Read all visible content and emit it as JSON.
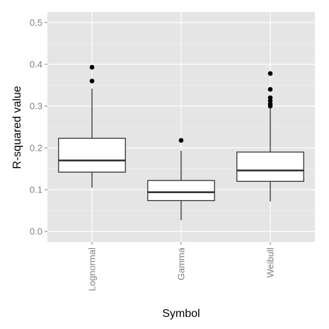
{
  "chart_data": {
    "type": "box",
    "xlabel": "Symbol",
    "ylabel": "R-squared value",
    "ylim": [
      -0.025,
      0.525
    ],
    "yticks": [
      "0.0",
      "0.1",
      "0.2",
      "0.3",
      "0.4",
      "0.5"
    ],
    "ytick_values": [
      0.0,
      0.1,
      0.2,
      0.3,
      0.4,
      0.5
    ],
    "categories": [
      "Lognormal",
      "Gamma",
      "Weibull"
    ],
    "grid": true,
    "colors": {
      "panel_background": "#e5e5e5",
      "grid_major": "#ffffff",
      "grid_minor": "#f2f2f2",
      "box_fill": "#ffffff",
      "box_line": "#333333",
      "outlier": "#000000",
      "tick_label": "#7f7f7f"
    },
    "boxes": [
      {
        "category": "Lognormal",
        "whisker_low": 0.105,
        "q1": 0.142,
        "median": 0.17,
        "q3": 0.223,
        "whisker_high": 0.342,
        "outliers": [
          0.36,
          0.393
        ]
      },
      {
        "category": "Gamma",
        "whisker_low": 0.027,
        "q1": 0.074,
        "median": 0.094,
        "q3": 0.122,
        "whisker_high": 0.193,
        "outliers": [
          0.218
        ]
      },
      {
        "category": "Weibull",
        "whisker_low": 0.072,
        "q1": 0.12,
        "median": 0.146,
        "q3": 0.19,
        "whisker_high": 0.295,
        "outliers": [
          0.3,
          0.305,
          0.313,
          0.32,
          0.34,
          0.378
        ]
      }
    ]
  }
}
